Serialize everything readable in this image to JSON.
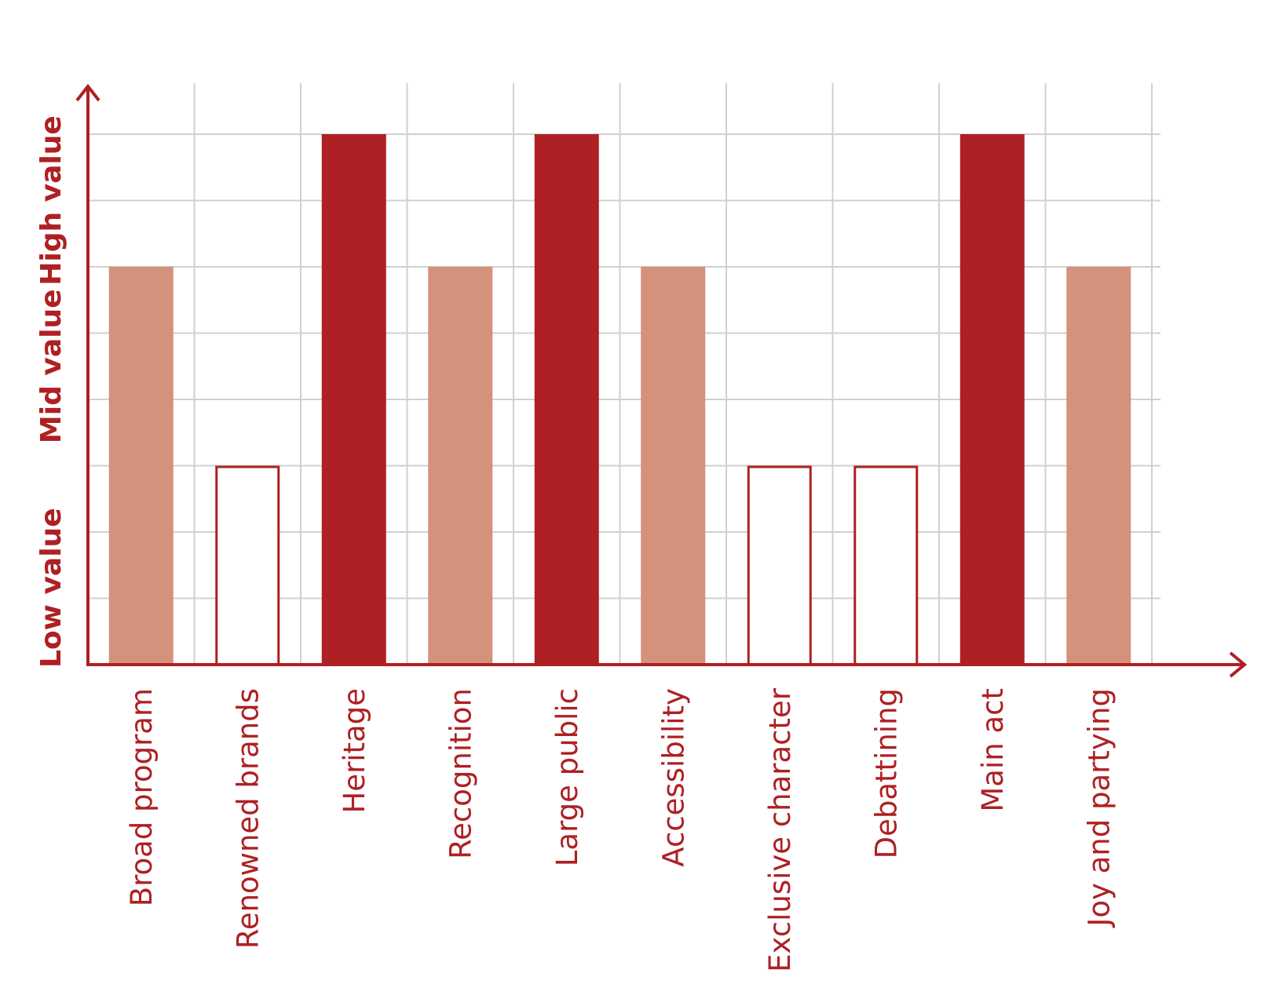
{
  "chart_data": {
    "type": "bar",
    "categories": [
      "Broad program",
      "Renowned brands",
      "Heritage",
      "Recognition",
      "Large public",
      "Accessibility",
      "Exclusive character",
      "Debattining",
      "Main act",
      "Joy and partying"
    ],
    "values": [
      6,
      3,
      8,
      6,
      8,
      6,
      3,
      3,
      8,
      6
    ],
    "levels": [
      {
        "label": "Low value",
        "min": 0,
        "max": 3
      },
      {
        "label": "Mid value",
        "min": 3,
        "max": 6
      },
      {
        "label": "High value",
        "min": 6,
        "max": 8
      }
    ],
    "ylim": [
      0,
      8.5
    ],
    "grid": true,
    "styles": {
      "3": {
        "fill": "#ffffff",
        "stroke": "#ae2023"
      },
      "6": {
        "fill": "#d4917c",
        "stroke": "none"
      },
      "8": {
        "fill": "#ae2023",
        "stroke": "none"
      }
    },
    "axis_color": "#ae2023",
    "grid_color": "#d0d0d0"
  }
}
